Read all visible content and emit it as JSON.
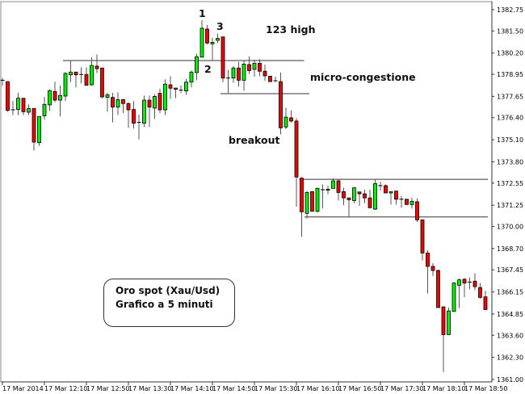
{
  "chart_data": {
    "type": "candlestick",
    "title": "",
    "ylim": [
      1361.0,
      1382.75
    ],
    "y_ticks": [
      "1382.75",
      "1381.50",
      "1380.20",
      "1378.95",
      "1377.65",
      "1376.40",
      "1375.10",
      "1373.80",
      "1372.55",
      "1371.25",
      "1370.00",
      "1368.70",
      "1367.45",
      "1366.15",
      "1364.85",
      "1363.60",
      "1362.30",
      "1361.00"
    ],
    "x_ticks": [
      "17 Mar 2014",
      "17 Mar 12:10",
      "17 Mar 12:50",
      "17 Mar 13:30",
      "17 Mar 14:10",
      "17 Mar 14:50",
      "17 Mar 15:30",
      "17 Mar 16:10",
      "17 Mar 16:50",
      "17 Mar 17:30",
      "17 Mar 18:10",
      "17 Mar 18:50"
    ],
    "interval": "5 minuti",
    "colors": {
      "up": "#00f000",
      "down": "#f00000",
      "wick": "#555555",
      "outline": "#000000"
    },
    "ohlc": [
      [
        1378.6,
        1378.73,
        1378.26,
        1378.55
      ],
      [
        1378.52,
        1378.52,
        1376.75,
        1376.83
      ],
      [
        1376.86,
        1377.38,
        1376.55,
        1376.86
      ],
      [
        1376.88,
        1377.86,
        1376.55,
        1377.54
      ],
      [
        1377.54,
        1377.54,
        1376.55,
        1376.75
      ],
      [
        1376.72,
        1377.18,
        1376.55,
        1376.94
      ],
      [
        1376.94,
        1376.94,
        1374.46,
        1374.96
      ],
      [
        1374.93,
        1376.47,
        1374.74,
        1376.47
      ],
      [
        1376.51,
        1377.62,
        1376.28,
        1377.18
      ],
      [
        1377.15,
        1378.07,
        1376.8,
        1377.99
      ],
      [
        1377.94,
        1378.52,
        1377.31,
        1377.43
      ],
      [
        1377.43,
        1378.29,
        1376.47,
        1377.7
      ],
      [
        1377.67,
        1379.08,
        1377.38,
        1379.0
      ],
      [
        1378.92,
        1379.76,
        1378.49,
        1379.08
      ],
      [
        1379.08,
        1379.08,
        1378.18,
        1378.92
      ],
      [
        1378.94,
        1379.36,
        1378.41,
        1378.94
      ],
      [
        1378.94,
        1379.36,
        1378.29,
        1378.3
      ],
      [
        1378.33,
        1379.95,
        1378.29,
        1379.47
      ],
      [
        1379.43,
        1380.12,
        1379.02,
        1379.28
      ],
      [
        1379.32,
        1379.32,
        1377.54,
        1377.62
      ],
      [
        1377.59,
        1377.86,
        1376.75,
        1377.75
      ],
      [
        1377.59,
        1377.86,
        1376.12,
        1377.02
      ],
      [
        1377.02,
        1377.89,
        1376.55,
        1377.46
      ],
      [
        1377.46,
        1377.5,
        1376.67,
        1377.23
      ],
      [
        1377.23,
        1377.31,
        1375.8,
        1376.86
      ],
      [
        1376.88,
        1377.37,
        1375.75,
        1376.07
      ],
      [
        1376.12,
        1376.59,
        1375.12,
        1376.12
      ],
      [
        1376.07,
        1377.7,
        1375.85,
        1377.43
      ],
      [
        1377.43,
        1377.7,
        1375.85,
        1377.02
      ],
      [
        1376.96,
        1377.78,
        1376.32,
        1377.65
      ],
      [
        1377.83,
        1378.1,
        1376.67,
        1376.86
      ],
      [
        1376.86,
        1378.65,
        1376.55,
        1378.37
      ],
      [
        1378.33,
        1378.84,
        1377.5,
        1378.13
      ],
      [
        1378.14,
        1378.14,
        1377.54,
        1378.07
      ],
      [
        1378.02,
        1378.29,
        1377.86,
        1378.02
      ],
      [
        1377.97,
        1378.68,
        1377.75,
        1378.49
      ],
      [
        1378.49,
        1379.17,
        1378.18,
        1379.08
      ],
      [
        1379.05,
        1380.15,
        1378.6,
        1379.98
      ],
      [
        1379.96,
        1382.13,
        1379.92,
        1381.66
      ],
      [
        1381.61,
        1381.85,
        1380.71,
        1380.79
      ],
      [
        1380.74,
        1381.1,
        1379.76,
        1380.83
      ],
      [
        1380.95,
        1381.34,
        1380.79,
        1381.06
      ],
      [
        1381.15,
        1381.15,
        1378.49,
        1378.73
      ],
      [
        1378.73,
        1379.2,
        1377.81,
        1378.73
      ],
      [
        1378.73,
        1379.44,
        1378.45,
        1379.32
      ],
      [
        1379.32,
        1379.68,
        1378.22,
        1378.6
      ],
      [
        1378.6,
        1379.76,
        1377.97,
        1379.55
      ],
      [
        1379.52,
        1380.0,
        1378.97,
        1379.17
      ],
      [
        1379.24,
        1379.81,
        1378.81,
        1379.6
      ],
      [
        1379.6,
        1379.84,
        1378.84,
        1379.13
      ],
      [
        1379.13,
        1379.52,
        1378.57,
        1378.86
      ],
      [
        1378.84,
        1378.84,
        1378.52,
        1378.52
      ],
      [
        1378.57,
        1378.81,
        1378.49,
        1378.57
      ],
      [
        1378.52,
        1379.05,
        1375.41,
        1375.8
      ],
      [
        1375.85,
        1376.99,
        1375.72,
        1376.43
      ],
      [
        1376.39,
        1376.83,
        1376.12,
        1376.2
      ],
      [
        1376.2,
        1376.36,
        1371.16,
        1372.91
      ],
      [
        1372.84,
        1372.9,
        1369.39,
        1370.86
      ],
      [
        1370.77,
        1372.08,
        1370.46,
        1372.0
      ],
      [
        1372.05,
        1372.08,
        1370.89,
        1370.89
      ],
      [
        1370.89,
        1372.28,
        1370.81,
        1372.24
      ],
      [
        1372.16,
        1372.47,
        1371.05,
        1372.16
      ],
      [
        1372.13,
        1372.4,
        1371.89,
        1372.19
      ],
      [
        1372.24,
        1372.84,
        1372.24,
        1372.68
      ],
      [
        1372.68,
        1372.79,
        1371.52,
        1372.0
      ],
      [
        1372.05,
        1372.28,
        1371.26,
        1371.68
      ],
      [
        1371.68,
        1371.68,
        1370.58,
        1371.57
      ],
      [
        1371.52,
        1372.32,
        1371.37,
        1372.27
      ],
      [
        1372.03,
        1372.03,
        1371.21,
        1371.92
      ],
      [
        1371.92,
        1372.16,
        1371.37,
        1371.68
      ],
      [
        1371.68,
        1372.16,
        1371.1,
        1371.1
      ],
      [
        1371.02,
        1372.74,
        1370.97,
        1372.52
      ],
      [
        1372.4,
        1372.63,
        1372.11,
        1372.4
      ],
      [
        1372.4,
        1372.47,
        1371.97,
        1371.97
      ],
      [
        1371.97,
        1372.05,
        1371.29,
        1372.05
      ],
      [
        1372.08,
        1372.08,
        1371.29,
        1371.6
      ],
      [
        1371.6,
        1371.79,
        1371.1,
        1371.6
      ],
      [
        1371.6,
        1371.63,
        1371.29,
        1371.29
      ],
      [
        1371.29,
        1371.68,
        1371.05,
        1371.48
      ],
      [
        1371.45,
        1371.65,
        1370.26,
        1370.39
      ],
      [
        1370.39,
        1370.42,
        1368.0,
        1368.44
      ],
      [
        1368.44,
        1368.6,
        1366.06,
        1367.65
      ],
      [
        1367.65,
        1367.84,
        1367.09,
        1367.41
      ],
      [
        1367.41,
        1367.46,
        1365.23,
        1365.23
      ],
      [
        1365.27,
        1365.3,
        1361.44,
        1363.64
      ],
      [
        1363.64,
        1365.23,
        1363.64,
        1365.03
      ],
      [
        1365.0,
        1366.73,
        1365.0,
        1366.67
      ],
      [
        1366.54,
        1366.93,
        1365.19,
        1366.86
      ],
      [
        1366.89,
        1366.98,
        1365.83,
        1366.67
      ],
      [
        1366.73,
        1367.01,
        1366.3,
        1366.73
      ],
      [
        1366.78,
        1367.25,
        1366.25,
        1366.46
      ],
      [
        1366.41,
        1366.67,
        1365.75,
        1365.83
      ],
      [
        1365.86,
        1366.22,
        1365.11,
        1365.11
      ]
    ],
    "levels": [
      {
        "price": 1379.76,
        "from_bar": 12,
        "to_bar": 57
      },
      {
        "price": 1377.81,
        "from_bar": 42,
        "to_bar": 58
      },
      {
        "price": 1372.77,
        "from_bar": 57,
        "to_bar": 92
      },
      {
        "price": 1370.56,
        "from_bar": 58,
        "to_bar": 92
      }
    ],
    "annotations": {
      "point1": "1",
      "point2": "2",
      "point3": "3",
      "pattern": "123 high",
      "congestion": "micro-congestione",
      "breakout": "breakout"
    }
  },
  "legend_box": {
    "line1": "Oro spot (Xau/Usd)",
    "line2": "Grafico a 5 minuti"
  }
}
